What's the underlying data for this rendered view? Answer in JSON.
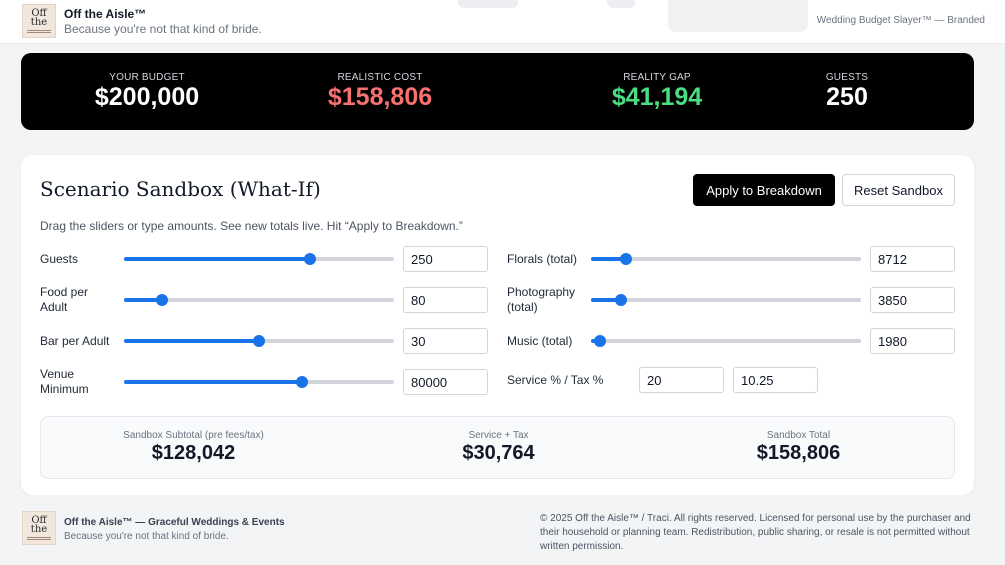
{
  "header": {
    "logo_text": "Off the Aisle",
    "brand_title": "Off the Aisle™",
    "tagline": "Because you're not that kind of bride.",
    "right_text": "Wedding Budget Slayer™ — Branded"
  },
  "stats": [
    {
      "label": "YOUR BUDGET",
      "value": "$200,000",
      "color": "#ffffff"
    },
    {
      "label": "REALISTIC COST",
      "value": "$158,806",
      "color": "#f87171"
    },
    {
      "label": "REALITY GAP",
      "value": "$41,194",
      "color": "#4ade80"
    },
    {
      "label": "GUESTS",
      "value": "250",
      "color": "#ffffff"
    }
  ],
  "sandbox": {
    "title": "Scenario Sandbox (What-If)",
    "apply_label": "Apply to Breakdown",
    "reset_label": "Reset Sandbox",
    "instructions": "Drag the sliders or type amounts. See new totals live. Hit “Apply to Breakdown.”",
    "left_rows": [
      {
        "label": "Guests",
        "value": "250",
        "slider_fraction": 0.69
      },
      {
        "label": "Food per Adult",
        "value": "80",
        "slider_fraction": 0.14
      },
      {
        "label": "Bar per Adult",
        "value": "30",
        "slider_fraction": 0.5
      },
      {
        "label": "Venue Minimum",
        "value": "80000",
        "slider_fraction": 0.66
      }
    ],
    "right_rows": [
      {
        "label": "Florals (total)",
        "value": "8712",
        "slider_fraction": 0.13
      },
      {
        "label": "Photography (total)",
        "value": "3850",
        "slider_fraction": 0.11
      },
      {
        "label": "Music (total)",
        "value": "1980",
        "slider_fraction": 0.035
      }
    ],
    "service_tax": {
      "label": "Service % / Tax %",
      "service": "20",
      "tax": "10.25"
    },
    "summary": [
      {
        "label": "Sandbox Subtotal (pre fees/tax)",
        "value": "$128,042"
      },
      {
        "label": "Service + Tax",
        "value": "$30,764"
      },
      {
        "label": "Sandbox Total",
        "value": "$158,806"
      }
    ]
  },
  "footer": {
    "logo_text": "Off the Aisle",
    "title": "Off the Aisle™ — Graceful Weddings & Events",
    "tagline": "Because you're not that kind of bride.",
    "copyright": "© 2025 Off the Aisle™ / Traci. All rights reserved. Licensed for personal use by the purchaser and their household or planning team. Redistribution, public sharing, or resale is not permitted without written permission."
  }
}
